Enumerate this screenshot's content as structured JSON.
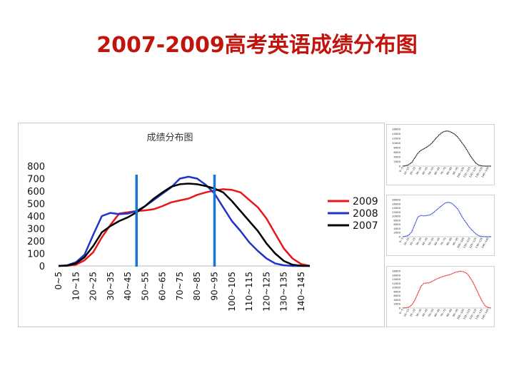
{
  "slide": {
    "title": "2007-2009高考英语成绩分布图"
  },
  "chart_data": [
    {
      "type": "line",
      "title": "成绩分布图",
      "xlabel": "",
      "ylabel": "",
      "ylim": [
        0,
        800
      ],
      "yticks": [
        "0",
        "100",
        "200",
        "300",
        "400",
        "500",
        "600",
        "700",
        "800"
      ],
      "categories": [
        "0~5",
        "10~15",
        "20~25",
        "30~35",
        "40~45",
        "50~55",
        "60~65",
        "70~75",
        "80~85",
        "90~95",
        "100~105",
        "110~115",
        "120~125",
        "130~135",
        "140~145"
      ],
      "x": [
        0,
        5,
        10,
        15,
        20,
        25,
        30,
        35,
        40,
        45,
        50,
        55,
        60,
        65,
        70,
        75,
        80,
        85,
        90,
        95,
        100,
        105,
        110,
        115,
        120,
        125,
        130,
        135,
        140,
        145
      ],
      "legend_position": "right",
      "grid": false,
      "reference_lines": [
        45,
        90
      ],
      "series": [
        {
          "name": "2009",
          "color": "#e8151b",
          "values": [
            0,
            2,
            10,
            45,
            110,
            230,
            330,
            420,
            430,
            440,
            445,
            455,
            480,
            510,
            525,
            540,
            570,
            590,
            605,
            615,
            610,
            590,
            530,
            470,
            380,
            260,
            140,
            60,
            15,
            0
          ]
        },
        {
          "name": "2008",
          "color": "#1f35c8",
          "values": [
            0,
            5,
            30,
            90,
            250,
            400,
            425,
            415,
            420,
            440,
            480,
            530,
            580,
            630,
            700,
            715,
            700,
            650,
            580,
            470,
            360,
            280,
            190,
            120,
            60,
            20,
            5,
            0,
            0,
            0
          ]
        },
        {
          "name": "2007",
          "color": "#000000",
          "values": [
            0,
            3,
            20,
            70,
            160,
            270,
            320,
            360,
            390,
            430,
            480,
            540,
            590,
            635,
            655,
            660,
            655,
            640,
            620,
            590,
            520,
            440,
            360,
            280,
            180,
            100,
            40,
            10,
            2,
            0
          ]
        }
      ]
    },
    {
      "type": "line",
      "title": "",
      "ylim": [
        0,
        16000
      ],
      "yticks": [
        "0",
        "2000",
        "4000",
        "6000",
        "8000",
        "10000",
        "12000",
        "14000",
        "16000"
      ],
      "series": [
        {
          "name": "",
          "color": "#000000",
          "values": [
            0,
            200,
            600,
            1600,
            3600,
            5600,
            6800,
            7500,
            8300,
            9200,
            10600,
            12100,
            13500,
            14600,
            15100,
            15100,
            14600,
            13800,
            12600,
            10900,
            9100,
            7100,
            4800,
            2900,
            1300,
            400,
            100,
            0,
            0,
            0
          ]
        }
      ]
    },
    {
      "type": "line",
      "title": "",
      "ylim": [
        0,
        18000
      ],
      "yticks": [
        "0",
        "2000",
        "4000",
        "6000",
        "8000",
        "10000",
        "12000",
        "14000",
        "16000",
        "18000"
      ],
      "series": [
        {
          "name": "",
          "color": "#1f35c8",
          "values": [
            0,
            200,
            800,
            2400,
            6000,
            9600,
            10300,
            10100,
            10300,
            10600,
            11600,
            12800,
            14100,
            15300,
            16400,
            16700,
            16300,
            15100,
            13500,
            11000,
            8400,
            6400,
            4300,
            2800,
            1400,
            400,
            100,
            0,
            0,
            0
          ]
        }
      ]
    },
    {
      "type": "line",
      "title": "",
      "ylim": [
        0,
        18000
      ],
      "yticks": [
        "0",
        "2000",
        "4000",
        "6000",
        "8000",
        "10000",
        "12000",
        "14000",
        "16000",
        "18000"
      ],
      "series": [
        {
          "name": "",
          "color": "#e8151b",
          "values": [
            0,
            100,
            400,
            1500,
            3800,
            7100,
            10600,
            12000,
            12100,
            12400,
            13200,
            14000,
            14600,
            15200,
            15600,
            16000,
            16500,
            17200,
            17600,
            17900,
            17600,
            16800,
            15000,
            12700,
            9600,
            6400,
            3400,
            1100,
            200,
            0
          ]
        }
      ]
    }
  ]
}
